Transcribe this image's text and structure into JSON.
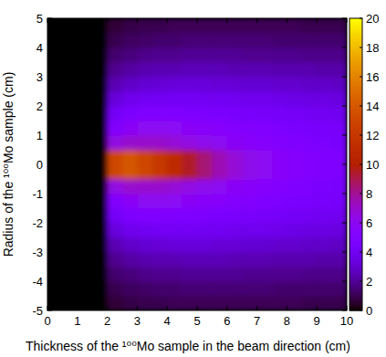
{
  "chart_data": {
    "type": "heatmap",
    "xlabel": "Thickness of the ¹⁰⁰Mo sample in the beam direction (cm)",
    "ylabel": "Radius of the ¹⁰⁰Mo sample (cm)",
    "xlim": [
      0,
      10
    ],
    "ylim": [
      -5,
      5
    ],
    "xticks": [
      0,
      1,
      2,
      3,
      4,
      5,
      6,
      7,
      8,
      9,
      10
    ],
    "yticks": [
      -5,
      -4,
      -3,
      -2,
      -1,
      0,
      1,
      2,
      3,
      4,
      5
    ],
    "x": [
      0.25,
      0.75,
      1.25,
      1.75,
      2.25,
      2.75,
      3.25,
      3.75,
      4.25,
      4.75,
      5.25,
      5.75,
      6.25,
      6.75,
      7.25,
      7.75,
      8.25,
      8.75,
      9.25,
      9.75
    ],
    "y": [
      -4.75,
      -4.25,
      -3.75,
      -3.25,
      -2.75,
      -2.25,
      -1.75,
      -1.25,
      -0.75,
      -0.25,
      0.25,
      0.75,
      1.25,
      1.75,
      2.25,
      2.75,
      3.25,
      3.75,
      4.25,
      4.75
    ],
    "values": [
      [
        0,
        0,
        0,
        0,
        0.7,
        0.9,
        1.0,
        1.0,
        1.1,
        1.1,
        1.1,
        1.1,
        1.1,
        1.1,
        1.1,
        1.1,
        1.1,
        1.0,
        1.0,
        1.0
      ],
      [
        0,
        0,
        0,
        0,
        1.0,
        1.2,
        1.3,
        1.4,
        1.4,
        1.5,
        1.5,
        1.5,
        1.5,
        1.5,
        1.5,
        1.4,
        1.4,
        1.4,
        1.4,
        1.4
      ],
      [
        0,
        0,
        0,
        0,
        1.4,
        1.6,
        1.8,
        1.9,
        1.9,
        2.0,
        2.0,
        2.0,
        2.0,
        1.9,
        1.9,
        1.9,
        1.9,
        1.8,
        1.8,
        1.8
      ],
      [
        0,
        0,
        0,
        0,
        1.9,
        2.2,
        2.4,
        2.5,
        2.5,
        2.6,
        2.6,
        2.6,
        2.5,
        2.5,
        2.5,
        2.4,
        2.4,
        2.4,
        2.3,
        2.3
      ],
      [
        0,
        0,
        0,
        0,
        2.5,
        2.9,
        3.1,
        3.2,
        3.3,
        3.3,
        3.3,
        3.2,
        3.2,
        3.1,
        3.1,
        3.0,
        3.0,
        2.9,
        2.9,
        2.8
      ],
      [
        0,
        0,
        0,
        0,
        3.3,
        3.8,
        4.0,
        4.1,
        4.1,
        4.1,
        4.0,
        4.0,
        3.9,
        3.8,
        3.8,
        3.7,
        3.6,
        3.5,
        3.5,
        3.4
      ],
      [
        0,
        0,
        0,
        0,
        4.2,
        4.8,
        5.0,
        5.0,
        5.0,
        4.9,
        4.8,
        4.7,
        4.6,
        4.5,
        4.4,
        4.3,
        4.2,
        4.1,
        4.0,
        3.9
      ],
      [
        0,
        0,
        0,
        0,
        5.2,
        5.8,
        6.0,
        6.0,
        5.9,
        5.8,
        5.6,
        5.5,
        5.3,
        5.2,
        5.0,
        4.9,
        4.7,
        4.6,
        4.5,
        4.4
      ],
      [
        0,
        0,
        0,
        0,
        6.5,
        7.0,
        7.0,
        7.0,
        6.8,
        6.5,
        6.2,
        6.0,
        5.8,
        5.6,
        5.4,
        5.2,
        5.0,
        4.9,
        4.7,
        4.6
      ],
      [
        0,
        0,
        0,
        0,
        13,
        14,
        13,
        12,
        11,
        9.5,
        8.5,
        7.5,
        6.8,
        6.3,
        6.0,
        5.7,
        5.4,
        5.2,
        5.0,
        4.8
      ],
      [
        0,
        0,
        0,
        0,
        13,
        14,
        13,
        12,
        11,
        9.5,
        8.5,
        7.5,
        6.8,
        6.3,
        6.0,
        5.7,
        5.4,
        5.2,
        5.0,
        4.8
      ],
      [
        0,
        0,
        0,
        0,
        6.5,
        7.0,
        7.0,
        7.0,
        6.8,
        6.5,
        6.2,
        6.0,
        5.8,
        5.6,
        5.4,
        5.2,
        5.0,
        4.9,
        4.7,
        4.6
      ],
      [
        0,
        0,
        0,
        0,
        5.2,
        5.8,
        6.0,
        6.0,
        5.9,
        5.8,
        5.6,
        5.5,
        5.3,
        5.2,
        5.0,
        4.9,
        4.7,
        4.6,
        4.5,
        4.4
      ],
      [
        0,
        0,
        0,
        0,
        4.2,
        4.8,
        5.0,
        5.0,
        5.0,
        4.9,
        4.8,
        4.7,
        4.6,
        4.5,
        4.4,
        4.3,
        4.2,
        4.1,
        4.0,
        3.9
      ],
      [
        0,
        0,
        0,
        0,
        3.3,
        3.8,
        4.0,
        4.1,
        4.1,
        4.1,
        4.0,
        4.0,
        3.9,
        3.8,
        3.8,
        3.7,
        3.6,
        3.5,
        3.5,
        3.4
      ],
      [
        0,
        0,
        0,
        0,
        2.5,
        2.9,
        3.1,
        3.2,
        3.3,
        3.3,
        3.3,
        3.2,
        3.2,
        3.1,
        3.1,
        3.0,
        3.0,
        2.9,
        2.9,
        2.8
      ],
      [
        0,
        0,
        0,
        0,
        1.9,
        2.2,
        2.4,
        2.5,
        2.5,
        2.6,
        2.6,
        2.6,
        2.5,
        2.5,
        2.5,
        2.4,
        2.4,
        2.4,
        2.3,
        2.3
      ],
      [
        0,
        0,
        0,
        0,
        1.4,
        1.6,
        1.8,
        1.9,
        1.9,
        2.0,
        2.0,
        2.0,
        2.0,
        1.9,
        1.9,
        1.9,
        1.9,
        1.8,
        1.8,
        1.8
      ],
      [
        0,
        0,
        0,
        0,
        1.0,
        1.2,
        1.3,
        1.4,
        1.4,
        1.5,
        1.5,
        1.5,
        1.5,
        1.5,
        1.5,
        1.4,
        1.4,
        1.4,
        1.4,
        1.4
      ],
      [
        0,
        0,
        0,
        0,
        0.7,
        0.9,
        1.0,
        1.0,
        1.1,
        1.1,
        1.1,
        1.1,
        1.1,
        1.1,
        1.1,
        1.1,
        1.1,
        1.0,
        1.0,
        1.0
      ]
    ],
    "colorbar_range": [
      0,
      20
    ],
    "colorbar_ticks": [
      0,
      2,
      4,
      6,
      8,
      10,
      12,
      14,
      16,
      18,
      20
    ]
  }
}
